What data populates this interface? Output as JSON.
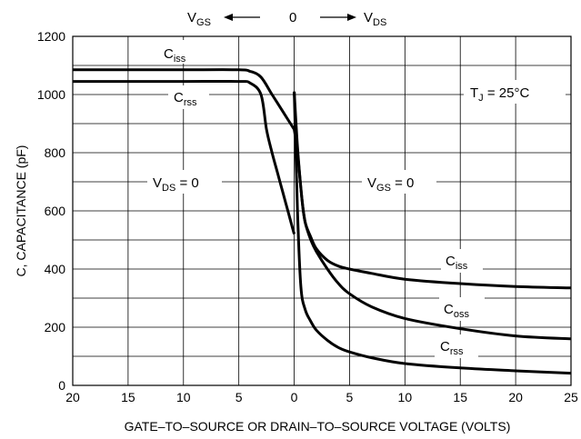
{
  "chart_data": {
    "type": "line",
    "xlabel": "GATE–TO–SOURCE OR DRAIN–TO–SOURCE VOLTAGE (VOLTS)",
    "ylabel": "C, CAPACITANCE (pF)",
    "x_ticks": [
      "20",
      "15",
      "10",
      "5",
      "0",
      "5",
      "10",
      "15",
      "20",
      "25"
    ],
    "x_range": [
      -20,
      25
    ],
    "ylim": [
      0,
      1200
    ],
    "y_ticks": [
      "0",
      "200",
      "400",
      "600",
      "800",
      "1000",
      "1200"
    ],
    "grid": true,
    "top_axis": {
      "left": "V",
      "left_sub": "GS",
      "center": "0",
      "right": "V",
      "right_sub": "DS"
    },
    "annotations": {
      "tj": {
        "main": "T",
        "sub": "J",
        "rest": " = 25°C"
      },
      "vds0": {
        "main": "V",
        "sub": "DS",
        "rest": " = 0"
      },
      "vgs0": {
        "main": "V",
        "sub": "GS",
        "rest": " = 0"
      }
    },
    "series": [
      {
        "name": "Ciss (VDS = 0 side)",
        "label_main": "C",
        "label_sub": "iss",
        "x": [
          -20,
          -15,
          -10,
          -5,
          -4,
          -3,
          -2,
          -1,
          0
        ],
        "y": [
          1085,
          1085,
          1085,
          1085,
          1080,
          1060,
          1000,
          940,
          880
        ]
      },
      {
        "name": "Crss (VDS = 0 side)",
        "label_main": "C",
        "label_sub": "rss",
        "x": [
          -20,
          -15,
          -10,
          -5,
          -4,
          -3,
          -2.5,
          -2,
          -1.5,
          -1,
          -0.5,
          0
        ],
        "y": [
          1045,
          1045,
          1045,
          1045,
          1040,
          1000,
          880,
          800,
          730,
          660,
          590,
          520
        ]
      },
      {
        "name": "Ciss",
        "label_main": "C",
        "label_sub": "iss",
        "x": [
          0,
          0.3,
          0.7,
          1,
          1.5,
          2,
          3,
          4,
          5,
          7,
          10,
          15,
          20,
          25
        ],
        "y": [
          880,
          800,
          640,
          560,
          510,
          470,
          430,
          410,
          400,
          385,
          365,
          350,
          340,
          335
        ]
      },
      {
        "name": "Coss",
        "label_main": "C",
        "label_sub": "oss",
        "x": [
          0,
          0.3,
          0.7,
          1,
          1.5,
          2,
          3,
          4,
          5,
          7,
          10,
          15,
          20,
          25
        ],
        "y": [
          1010,
          820,
          640,
          560,
          500,
          460,
          400,
          350,
          315,
          270,
          230,
          195,
          170,
          160
        ]
      },
      {
        "name": "Crss",
        "label_main": "C",
        "label_sub": "rss",
        "x": [
          0,
          0.3,
          0.6,
          1,
          1.5,
          2,
          3,
          4,
          5,
          7,
          10,
          15,
          20,
          25
        ],
        "y": [
          1010,
          600,
          340,
          260,
          220,
          190,
          155,
          130,
          115,
          95,
          75,
          60,
          50,
          42
        ]
      }
    ]
  }
}
